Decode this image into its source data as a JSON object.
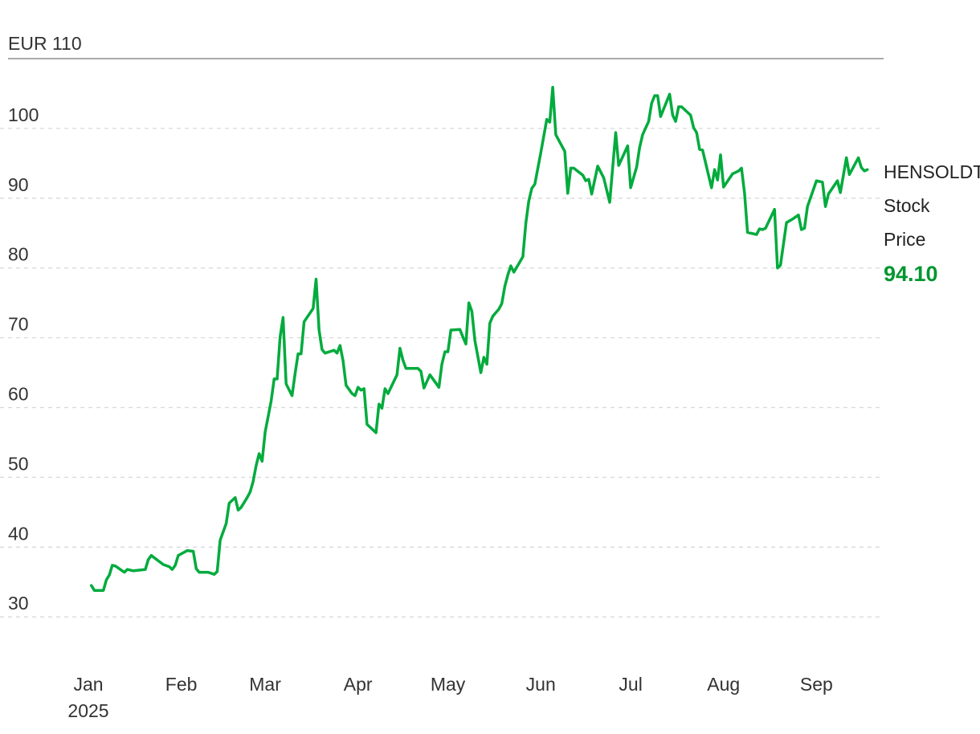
{
  "chart_data": {
    "type": "line",
    "unit_label": "EUR 110",
    "series_label": [
      "HENSOLDT",
      "Stock",
      "Price"
    ],
    "last_value_label": "94.10",
    "line_color": "#00ab3d",
    "last_value_color": "#00962f",
    "grid": true,
    "ylim": [
      30,
      110
    ],
    "yticks": [
      100,
      90,
      80,
      70,
      60,
      50,
      40,
      30
    ],
    "xlim": [
      "2025-01-01",
      "2025-09-18"
    ],
    "xticks": [
      {
        "label": "Jan",
        "date": "2025-01-01",
        "sub": "2025"
      },
      {
        "label": "Feb",
        "date": "2025-02-01"
      },
      {
        "label": "Mar",
        "date": "2025-03-01"
      },
      {
        "label": "Apr",
        "date": "2025-04-01"
      },
      {
        "label": "May",
        "date": "2025-05-01"
      },
      {
        "label": "Jun",
        "date": "2025-06-01"
      },
      {
        "label": "Jul",
        "date": "2025-07-01"
      },
      {
        "label": "Aug",
        "date": "2025-08-01"
      },
      {
        "label": "Sep",
        "date": "2025-09-01"
      }
    ],
    "points": [
      [
        "2025-01-02",
        34.5
      ],
      [
        "2025-01-03",
        33.8
      ],
      [
        "2025-01-06",
        33.8
      ],
      [
        "2025-01-07",
        35.3
      ],
      [
        "2025-01-08",
        36.0
      ],
      [
        "2025-01-09",
        37.4
      ],
      [
        "2025-01-10",
        37.3
      ],
      [
        "2025-01-13",
        36.4
      ],
      [
        "2025-01-14",
        36.8
      ],
      [
        "2025-01-16",
        36.6
      ],
      [
        "2025-01-20",
        36.8
      ],
      [
        "2025-01-21",
        38.2
      ],
      [
        "2025-01-22",
        38.8
      ],
      [
        "2025-01-26",
        37.5
      ],
      [
        "2025-01-28",
        37.2
      ],
      [
        "2025-01-29",
        36.8
      ],
      [
        "2025-01-30",
        37.4
      ],
      [
        "2025-01-31",
        38.8
      ],
      [
        "2025-02-03",
        39.5
      ],
      [
        "2025-02-05",
        39.4
      ],
      [
        "2025-02-06",
        36.9
      ],
      [
        "2025-02-07",
        36.4
      ],
      [
        "2025-02-10",
        36.4
      ],
      [
        "2025-02-12",
        36.1
      ],
      [
        "2025-02-13",
        36.5
      ],
      [
        "2025-02-14",
        41.0
      ],
      [
        "2025-02-16",
        43.4
      ],
      [
        "2025-02-17",
        46.3
      ],
      [
        "2025-02-19",
        47.1
      ],
      [
        "2025-02-20",
        45.3
      ],
      [
        "2025-02-21",
        45.7
      ],
      [
        "2025-02-23",
        47.1
      ],
      [
        "2025-02-24",
        47.9
      ],
      [
        "2025-02-25",
        49.4
      ],
      [
        "2025-02-26",
        51.7
      ],
      [
        "2025-02-27",
        53.4
      ],
      [
        "2025-02-28",
        52.3
      ],
      [
        "2025-03-01",
        56.5
      ],
      [
        "2025-03-03",
        60.9
      ],
      [
        "2025-03-04",
        64.1
      ],
      [
        "2025-03-05",
        64.1
      ],
      [
        "2025-03-06",
        70.1
      ],
      [
        "2025-03-07",
        72.9
      ],
      [
        "2025-03-08",
        63.4
      ],
      [
        "2025-03-10",
        61.7
      ],
      [
        "2025-03-11",
        64.9
      ],
      [
        "2025-03-12",
        67.7
      ],
      [
        "2025-03-13",
        67.7
      ],
      [
        "2025-03-14",
        72.3
      ],
      [
        "2025-03-17",
        74.2
      ],
      [
        "2025-03-18",
        78.4
      ],
      [
        "2025-03-19",
        71.1
      ],
      [
        "2025-03-20",
        68.3
      ],
      [
        "2025-03-21",
        67.8
      ],
      [
        "2025-03-24",
        68.2
      ],
      [
        "2025-03-25",
        67.8
      ],
      [
        "2025-03-26",
        68.9
      ],
      [
        "2025-03-27",
        66.7
      ],
      [
        "2025-03-28",
        63.2
      ],
      [
        "2025-03-30",
        62.0
      ],
      [
        "2025-03-31",
        61.7
      ],
      [
        "2025-04-01",
        62.9
      ],
      [
        "2025-04-02",
        62.5
      ],
      [
        "2025-04-03",
        62.7
      ],
      [
        "2025-04-04",
        57.6
      ],
      [
        "2025-04-07",
        56.4
      ],
      [
        "2025-04-08",
        60.5
      ],
      [
        "2025-04-09",
        59.9
      ],
      [
        "2025-04-10",
        62.7
      ],
      [
        "2025-04-11",
        62.0
      ],
      [
        "2025-04-14",
        64.7
      ],
      [
        "2025-04-15",
        68.5
      ],
      [
        "2025-04-16",
        66.8
      ],
      [
        "2025-04-17",
        65.6
      ],
      [
        "2025-04-21",
        65.6
      ],
      [
        "2025-04-22",
        65.2
      ],
      [
        "2025-04-23",
        62.8
      ],
      [
        "2025-04-25",
        64.7
      ],
      [
        "2025-04-28",
        62.9
      ],
      [
        "2025-04-29",
        66.2
      ],
      [
        "2025-04-30",
        68.0
      ],
      [
        "2025-05-01",
        68.0
      ],
      [
        "2025-05-02",
        71.1
      ],
      [
        "2025-05-05",
        71.2
      ],
      [
        "2025-05-06",
        70.1
      ],
      [
        "2025-05-07",
        69.1
      ],
      [
        "2025-05-08",
        75.0
      ],
      [
        "2025-05-09",
        73.8
      ],
      [
        "2025-05-10",
        69.6
      ],
      [
        "2025-05-12",
        65.0
      ],
      [
        "2025-05-13",
        67.2
      ],
      [
        "2025-05-14",
        66.2
      ],
      [
        "2025-05-15",
        72.1
      ],
      [
        "2025-05-16",
        73.1
      ],
      [
        "2025-05-18",
        74.1
      ],
      [
        "2025-05-19",
        74.9
      ],
      [
        "2025-05-20",
        77.4
      ],
      [
        "2025-05-21",
        79.0
      ],
      [
        "2025-05-22",
        80.3
      ],
      [
        "2025-05-23",
        79.4
      ],
      [
        "2025-05-26",
        81.6
      ],
      [
        "2025-05-27",
        86.4
      ],
      [
        "2025-05-28",
        89.6
      ],
      [
        "2025-05-29",
        91.4
      ],
      [
        "2025-05-30",
        92.0
      ],
      [
        "2025-06-01",
        96.5
      ],
      [
        "2025-06-03",
        101.3
      ],
      [
        "2025-06-04",
        100.9
      ],
      [
        "2025-06-05",
        105.9
      ],
      [
        "2025-06-06",
        99.1
      ],
      [
        "2025-06-09",
        96.7
      ],
      [
        "2025-06-10",
        90.7
      ],
      [
        "2025-06-11",
        94.3
      ],
      [
        "2025-06-12",
        94.3
      ],
      [
        "2025-06-15",
        93.3
      ],
      [
        "2025-06-16",
        92.5
      ],
      [
        "2025-06-17",
        92.7
      ],
      [
        "2025-06-18",
        90.6
      ],
      [
        "2025-06-20",
        94.6
      ],
      [
        "2025-06-22",
        92.9
      ],
      [
        "2025-06-24",
        89.4
      ],
      [
        "2025-06-26",
        99.4
      ],
      [
        "2025-06-27",
        94.7
      ],
      [
        "2025-06-30",
        97.5
      ],
      [
        "2025-07-01",
        91.5
      ],
      [
        "2025-07-03",
        94.5
      ],
      [
        "2025-07-04",
        97.3
      ],
      [
        "2025-07-05",
        99.1
      ],
      [
        "2025-07-07",
        101.0
      ],
      [
        "2025-07-08",
        103.6
      ],
      [
        "2025-07-09",
        104.7
      ],
      [
        "2025-07-10",
        104.7
      ],
      [
        "2025-07-11",
        101.7
      ],
      [
        "2025-07-14",
        104.9
      ],
      [
        "2025-07-15",
        101.9
      ],
      [
        "2025-07-16",
        101.0
      ],
      [
        "2025-07-17",
        103.1
      ],
      [
        "2025-07-18",
        103.1
      ],
      [
        "2025-07-21",
        101.9
      ],
      [
        "2025-07-22",
        100.1
      ],
      [
        "2025-07-23",
        99.4
      ],
      [
        "2025-07-24",
        97.0
      ],
      [
        "2025-07-25",
        96.9
      ],
      [
        "2025-07-28",
        91.5
      ],
      [
        "2025-07-29",
        94.1
      ],
      [
        "2025-07-30",
        92.6
      ],
      [
        "2025-07-31",
        96.2
      ],
      [
        "2025-08-01",
        91.6
      ],
      [
        "2025-08-04",
        93.5
      ],
      [
        "2025-08-06",
        93.9
      ],
      [
        "2025-08-07",
        94.3
      ],
      [
        "2025-08-08",
        90.7
      ],
      [
        "2025-08-09",
        85.1
      ],
      [
        "2025-08-12",
        84.8
      ],
      [
        "2025-08-13",
        85.6
      ],
      [
        "2025-08-14",
        85.5
      ],
      [
        "2025-08-15",
        85.7
      ],
      [
        "2025-08-18",
        88.4
      ],
      [
        "2025-08-19",
        80.0
      ],
      [
        "2025-08-20",
        80.4
      ],
      [
        "2025-08-22",
        86.5
      ],
      [
        "2025-08-24",
        87.0
      ],
      [
        "2025-08-26",
        87.6
      ],
      [
        "2025-08-27",
        85.5
      ],
      [
        "2025-08-28",
        85.7
      ],
      [
        "2025-08-29",
        88.8
      ],
      [
        "2025-09-01",
        92.5
      ],
      [
        "2025-09-03",
        92.3
      ],
      [
        "2025-09-04",
        88.8
      ],
      [
        "2025-09-05",
        90.6
      ],
      [
        "2025-09-08",
        92.5
      ],
      [
        "2025-09-09",
        90.8
      ],
      [
        "2025-09-11",
        95.8
      ],
      [
        "2025-09-12",
        93.4
      ],
      [
        "2025-09-15",
        95.8
      ],
      [
        "2025-09-16",
        94.4
      ],
      [
        "2025-09-17",
        93.9
      ],
      [
        "2025-09-18",
        94.1
      ]
    ]
  }
}
